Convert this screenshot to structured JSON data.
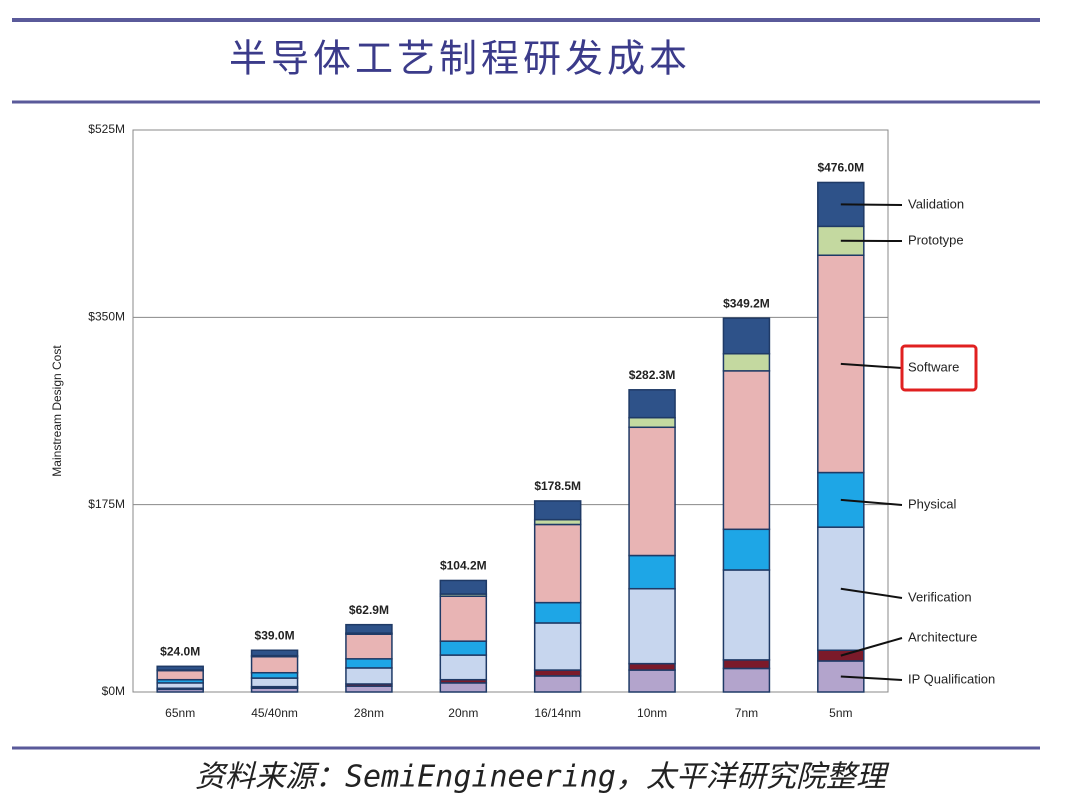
{
  "header": {
    "title": "半导体工艺制程研发成本"
  },
  "footer": {
    "source": "资料来源：SemiEngineering，太平洋研究院整理"
  },
  "chart_data": {
    "type": "stacked_bar",
    "y_label": "Mainstream Design Cost",
    "categories": [
      "65nm",
      "45/40nm",
      "28nm",
      "20nm",
      "16/14nm",
      "10nm",
      "7nm",
      "5nm"
    ],
    "series": [
      {
        "name": "IP Qualification",
        "color": "#b3a4cc",
        "values": [
          2.5,
          3.5,
          5.5,
          8.5,
          15,
          20.5,
          22,
          29
        ]
      },
      {
        "name": "Architecture",
        "color": "#7b1a2a",
        "values": [
          1,
          1.5,
          2,
          3,
          5.5,
          6,
          8,
          10
        ]
      },
      {
        "name": "Verification",
        "color": "#c7d6ee",
        "values": [
          5,
          8,
          15,
          23,
          44,
          70,
          84,
          115
        ]
      },
      {
        "name": "Physical",
        "color": "#1ea6e6",
        "values": [
          3,
          5,
          8.5,
          13,
          19,
          31,
          38,
          51
        ]
      },
      {
        "name": "Software",
        "color": "#e8b4b4",
        "values": [
          8.5,
          15,
          23,
          42,
          73,
          119.8,
          148,
          203
        ]
      },
      {
        "name": "Prototype",
        "color": "#c4d9a0",
        "values": [
          0.5,
          1,
          1,
          2,
          4.5,
          9,
          16,
          27
        ]
      },
      {
        "name": "Validation",
        "color": "#2e5289",
        "values": [
          3.5,
          5,
          7.9,
          12.7,
          17.5,
          26,
          33.2,
          41
        ]
      }
    ],
    "totals": {
      "values": [
        24.0,
        39.0,
        62.9,
        104.2,
        178.5,
        282.3,
        349.2,
        476.0
      ],
      "value_labels": [
        "$24.0M",
        "$39.0M",
        "$62.9M",
        "$104.2M",
        "$178.5M",
        "$282.3M",
        "$349.2M",
        "$476.0M"
      ]
    },
    "ylim": [
      0,
      525
    ],
    "yticks": [
      {
        "value": 0,
        "label": "$0M"
      },
      {
        "value": 175,
        "label": "$175M"
      },
      {
        "value": 350,
        "label": "$350M"
      },
      {
        "value": 525,
        "label": "$525M"
      }
    ],
    "grid": true
  }
}
